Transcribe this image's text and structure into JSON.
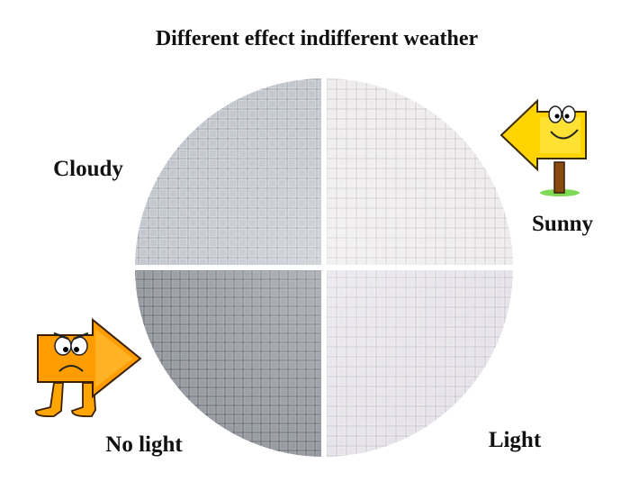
{
  "title": "Different effect indifferent weather",
  "labels": {
    "cloudy": "Cloudy",
    "sunny": "Sunny",
    "no_light": "No light",
    "light": "Light"
  }
}
